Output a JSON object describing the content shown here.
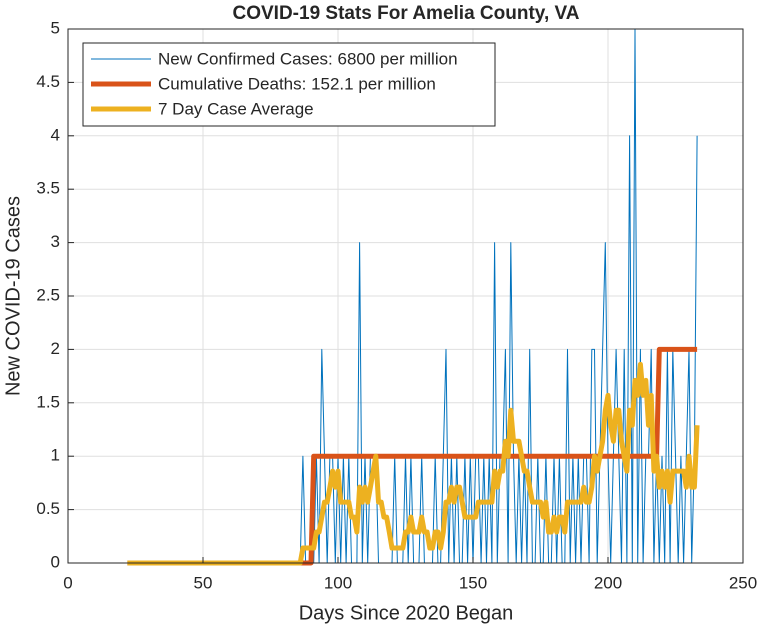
{
  "chart_data": {
    "type": "line",
    "title": "COVID-19 Stats For Amelia County, VA",
    "xlabel": "Days Since 2020 Began",
    "ylabel": "New COVID-19 Cases",
    "xlim": [
      0,
      250
    ],
    "xticks": [
      0,
      50,
      100,
      150,
      200,
      250
    ],
    "ylim": [
      0,
      5
    ],
    "yticks": [
      0,
      0.5,
      1,
      1.5,
      2,
      2.5,
      3,
      3.5,
      4,
      4.5,
      5
    ],
    "grid": true,
    "legend": "northwest",
    "x": [
      22,
      23,
      24,
      25,
      26,
      27,
      28,
      29,
      30,
      31,
      32,
      33,
      34,
      35,
      36,
      37,
      38,
      39,
      40,
      41,
      42,
      43,
      44,
      45,
      46,
      47,
      48,
      49,
      50,
      51,
      52,
      53,
      54,
      55,
      56,
      57,
      58,
      59,
      60,
      61,
      62,
      63,
      64,
      65,
      66,
      67,
      68,
      69,
      70,
      71,
      72,
      73,
      74,
      75,
      76,
      77,
      78,
      79,
      80,
      81,
      82,
      83,
      84,
      85,
      86,
      87,
      88,
      89,
      90,
      91,
      92,
      93,
      94,
      95,
      96,
      97,
      98,
      99,
      100,
      101,
      102,
      103,
      104,
      105,
      106,
      107,
      108,
      109,
      110,
      111,
      112,
      113,
      114,
      115,
      116,
      117,
      118,
      119,
      120,
      121,
      122,
      123,
      124,
      125,
      126,
      127,
      128,
      129,
      130,
      131,
      132,
      133,
      134,
      135,
      136,
      137,
      138,
      139,
      140,
      141,
      142,
      143,
      144,
      145,
      146,
      147,
      148,
      149,
      150,
      151,
      152,
      153,
      154,
      155,
      156,
      157,
      158,
      159,
      160,
      161,
      162,
      163,
      164,
      165,
      166,
      167,
      168,
      169,
      170,
      171,
      172,
      173,
      174,
      175,
      176,
      177,
      178,
      179,
      180,
      181,
      182,
      183,
      184,
      185,
      186,
      187,
      188,
      189,
      190,
      191,
      192,
      193,
      194,
      195,
      196,
      197,
      198,
      199,
      200,
      201,
      202,
      203,
      204,
      205,
      206,
      207,
      208,
      209,
      210,
      211,
      212,
      213,
      214,
      215,
      216,
      217,
      218,
      219,
      220,
      221,
      222,
      223,
      224,
      225,
      226,
      227,
      228,
      229,
      230,
      231,
      232,
      233
    ],
    "series": [
      {
        "name": "New Confirmed Cases: 6800 per million",
        "color": "#0072bd",
        "width": 1,
        "values": [
          0,
          0,
          0,
          0,
          0,
          0,
          0,
          0,
          0,
          0,
          0,
          0,
          0,
          0,
          0,
          0,
          0,
          0,
          0,
          0,
          0,
          0,
          0,
          0,
          0,
          0,
          0,
          0,
          0,
          0,
          0,
          0,
          0,
          0,
          0,
          0,
          0,
          0,
          0,
          0,
          0,
          0,
          0,
          0,
          0,
          0,
          0,
          0,
          0,
          0,
          0,
          0,
          0,
          0,
          0,
          0,
          0,
          0,
          0,
          0,
          0,
          0,
          0,
          0,
          0,
          1,
          0,
          0,
          0,
          0,
          1,
          0,
          2,
          1,
          0,
          1,
          1,
          0,
          1,
          0,
          1,
          0,
          1,
          0,
          0,
          0,
          3,
          0,
          1,
          0,
          1,
          1,
          1,
          0,
          0,
          0,
          0,
          0,
          0,
          1,
          0,
          0,
          0,
          1,
          0,
          1,
          0,
          0,
          0,
          1,
          0,
          0,
          0,
          0,
          1,
          0,
          0,
          1,
          2,
          0,
          1,
          0,
          1,
          0,
          0,
          1,
          0,
          1,
          0,
          1,
          1,
          0,
          1,
          0,
          1,
          0,
          3,
          0,
          1,
          1,
          2,
          0,
          3,
          1,
          0,
          1,
          0,
          1,
          0,
          2,
          0,
          0,
          1,
          0,
          0,
          1,
          0,
          0,
          1,
          0,
          1,
          0,
          0,
          2,
          0,
          1,
          0,
          1,
          0,
          1,
          1,
          0,
          2,
          2,
          0,
          1,
          2,
          3,
          1,
          0,
          1,
          2,
          1,
          0,
          2,
          0,
          4,
          0,
          5,
          0,
          2,
          0,
          1,
          1,
          2,
          0,
          1,
          0,
          1,
          0,
          2,
          0,
          2,
          1,
          0,
          1,
          0,
          1,
          2,
          0,
          1,
          4
        ]
      },
      {
        "name": "Cumulative Deaths: 152.1 per million",
        "color": "#d95319",
        "width": 5,
        "values": [
          0,
          0,
          0,
          0,
          0,
          0,
          0,
          0,
          0,
          0,
          0,
          0,
          0,
          0,
          0,
          0,
          0,
          0,
          0,
          0,
          0,
          0,
          0,
          0,
          0,
          0,
          0,
          0,
          0,
          0,
          0,
          0,
          0,
          0,
          0,
          0,
          0,
          0,
          0,
          0,
          0,
          0,
          0,
          0,
          0,
          0,
          0,
          0,
          0,
          0,
          0,
          0,
          0,
          0,
          0,
          0,
          0,
          0,
          0,
          0,
          0,
          0,
          0,
          0,
          0,
          0,
          0,
          0,
          0,
          1,
          1,
          1,
          1,
          1,
          1,
          1,
          1,
          1,
          1,
          1,
          1,
          1,
          1,
          1,
          1,
          1,
          1,
          1,
          1,
          1,
          1,
          1,
          1,
          1,
          1,
          1,
          1,
          1,
          1,
          1,
          1,
          1,
          1,
          1,
          1,
          1,
          1,
          1,
          1,
          1,
          1,
          1,
          1,
          1,
          1,
          1,
          1,
          1,
          1,
          1,
          1,
          1,
          1,
          1,
          1,
          1,
          1,
          1,
          1,
          1,
          1,
          1,
          1,
          1,
          1,
          1,
          1,
          1,
          1,
          1,
          1,
          1,
          1,
          1,
          1,
          1,
          1,
          1,
          1,
          1,
          1,
          1,
          1,
          1,
          1,
          1,
          1,
          1,
          1,
          1,
          1,
          1,
          1,
          1,
          1,
          1,
          1,
          1,
          1,
          1,
          1,
          1,
          1,
          1,
          1,
          1,
          1,
          1,
          1,
          1,
          1,
          1,
          1,
          1,
          1,
          1,
          1,
          1,
          1,
          1,
          1,
          1,
          1,
          1,
          1,
          1,
          1,
          2,
          2,
          2,
          2,
          2,
          2,
          2,
          2,
          2,
          2,
          2,
          2,
          2,
          2,
          2
        ]
      },
      {
        "name": "7 Day Case Average",
        "color": "#edb120",
        "width": 5,
        "values": [
          0,
          0,
          0,
          0,
          0,
          0,
          0,
          0,
          0,
          0,
          0,
          0,
          0,
          0,
          0,
          0,
          0,
          0,
          0,
          0,
          0,
          0,
          0,
          0,
          0,
          0,
          0,
          0,
          0,
          0,
          0,
          0,
          0,
          0,
          0,
          0,
          0,
          0,
          0,
          0,
          0,
          0,
          0,
          0,
          0,
          0,
          0,
          0,
          0,
          0,
          0,
          0,
          0,
          0,
          0,
          0,
          0,
          0,
          0,
          0,
          0,
          0,
          0,
          0,
          0,
          0.14,
          0.14,
          0.14,
          0.14,
          0.14,
          0.29,
          0.29,
          0.43,
          0.57,
          0.57,
          0.71,
          0.86,
          0.71,
          0.86,
          0.57,
          0.57,
          0.57,
          0.57,
          0.43,
          0.43,
          0.29,
          0.71,
          0.57,
          0.71,
          0.57,
          0.71,
          0.86,
          1,
          0.57,
          0.57,
          0.43,
          0.43,
          0.29,
          0.14,
          0.14,
          0.14,
          0.14,
          0.14,
          0.29,
          0.29,
          0.43,
          0.29,
          0.29,
          0.29,
          0.43,
          0.29,
          0.29,
          0.14,
          0.14,
          0.29,
          0.29,
          0.14,
          0.29,
          0.57,
          0.57,
          0.71,
          0.57,
          0.71,
          0.71,
          0.57,
          0.43,
          0.43,
          0.43,
          0.43,
          0.43,
          0.57,
          0.57,
          0.57,
          0.57,
          0.57,
          0.57,
          0.86,
          0.71,
          0.86,
          0.86,
          1.14,
          1,
          1.43,
          1.14,
          1.14,
          1.14,
          1,
          0.86,
          0.86,
          0.71,
          0.57,
          0.57,
          0.57,
          0.57,
          0.43,
          0.57,
          0.29,
          0.29,
          0.43,
          0.29,
          0.43,
          0.43,
          0.29,
          0.57,
          0.57,
          0.57,
          0.57,
          0.57,
          0.57,
          0.71,
          0.57,
          0.57,
          0.71,
          1,
          0.86,
          1,
          1.14,
          1.43,
          1.57,
          1.29,
          1.14,
          1.43,
          1.43,
          1.14,
          1,
          0.86,
          1.43,
          1.29,
          1.71,
          1.57,
          1.86,
          1.57,
          1.71,
          1.29,
          1.57,
          0.86,
          1,
          0.71,
          0.86,
          0.71,
          0.86,
          0.57,
          0.86,
          0.86,
          0.86,
          0.86,
          0.86,
          0.71,
          1,
          0.71,
          0.71,
          1.29
        ]
      }
    ]
  }
}
